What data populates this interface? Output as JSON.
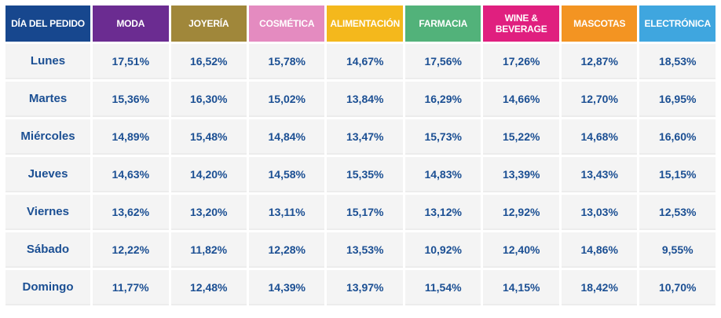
{
  "table": {
    "header": {
      "day_label": "DÍA DEL PEDIDO",
      "columns": [
        {
          "label": "MODA",
          "color": "#6b2c91"
        },
        {
          "label": "JOYERÍA",
          "color": "#a0873a"
        },
        {
          "label": "COSMÉTICA",
          "color": "#e48bc0"
        },
        {
          "label": "ALIMENTACIÓN",
          "color": "#f4b81c"
        },
        {
          "label": "FARMACIA",
          "color": "#52b27a"
        },
        {
          "label": "WINE & BEVERAGE",
          "color": "#e01f7f"
        },
        {
          "label": "MASCOTAS",
          "color": "#f39422"
        },
        {
          "label": "ELECTRÓNICA",
          "color": "#3fa6df"
        }
      ],
      "day_color": "#17478e"
    },
    "rows": [
      {
        "day": "Lunes",
        "values": [
          "17,51%",
          "16,52%",
          "15,78%",
          "14,67%",
          "17,56%",
          "17,26%",
          "12,87%",
          "18,53%"
        ]
      },
      {
        "day": "Martes",
        "values": [
          "15,36%",
          "16,30%",
          "15,02%",
          "13,84%",
          "16,29%",
          "14,66%",
          "12,70%",
          "16,95%"
        ]
      },
      {
        "day": "Miércoles",
        "values": [
          "14,89%",
          "15,48%",
          "14,84%",
          "13,47%",
          "15,73%",
          "15,22%",
          "14,68%",
          "16,60%"
        ]
      },
      {
        "day": "Jueves",
        "values": [
          "14,63%",
          "14,20%",
          "14,58%",
          "15,35%",
          "14,83%",
          "13,39%",
          "13,43%",
          "15,15%"
        ]
      },
      {
        "day": "Viernes",
        "values": [
          "13,62%",
          "13,20%",
          "13,11%",
          "15,17%",
          "13,12%",
          "12,92%",
          "13,03%",
          "12,53%"
        ]
      },
      {
        "day": "Sábado",
        "values": [
          "12,22%",
          "11,82%",
          "12,28%",
          "13,53%",
          "10,92%",
          "12,40%",
          "14,86%",
          "9,55%"
        ]
      },
      {
        "day": "Domingo",
        "values": [
          "11,77%",
          "12,48%",
          "14,39%",
          "13,97%",
          "11,54%",
          "14,15%",
          "18,42%",
          "10,70%"
        ]
      }
    ]
  },
  "chart_data": {
    "type": "table",
    "columns": [
      "DÍA DEL PEDIDO",
      "MODA",
      "JOYERÍA",
      "COSMÉTICA",
      "ALIMENTACIÓN",
      "FARMACIA",
      "WINE & BEVERAGE",
      "MASCOTAS",
      "ELECTRÓNICA"
    ],
    "rows": [
      [
        "Lunes",
        17.51,
        16.52,
        15.78,
        14.67,
        17.56,
        17.26,
        12.87,
        18.53
      ],
      [
        "Martes",
        15.36,
        16.3,
        15.02,
        13.84,
        16.29,
        14.66,
        12.7,
        16.95
      ],
      [
        "Miércoles",
        14.89,
        15.48,
        14.84,
        13.47,
        15.73,
        15.22,
        14.68,
        16.6
      ],
      [
        "Jueves",
        14.63,
        14.2,
        14.58,
        15.35,
        14.83,
        13.39,
        13.43,
        15.15
      ],
      [
        "Viernes",
        13.62,
        13.2,
        13.11,
        15.17,
        13.12,
        12.92,
        13.03,
        12.53
      ],
      [
        "Sábado",
        12.22,
        11.82,
        12.28,
        13.53,
        10.92,
        12.4,
        14.86,
        9.55
      ],
      [
        "Domingo",
        11.77,
        12.48,
        14.39,
        13.97,
        11.54,
        14.15,
        18.42,
        10.7
      ]
    ]
  }
}
